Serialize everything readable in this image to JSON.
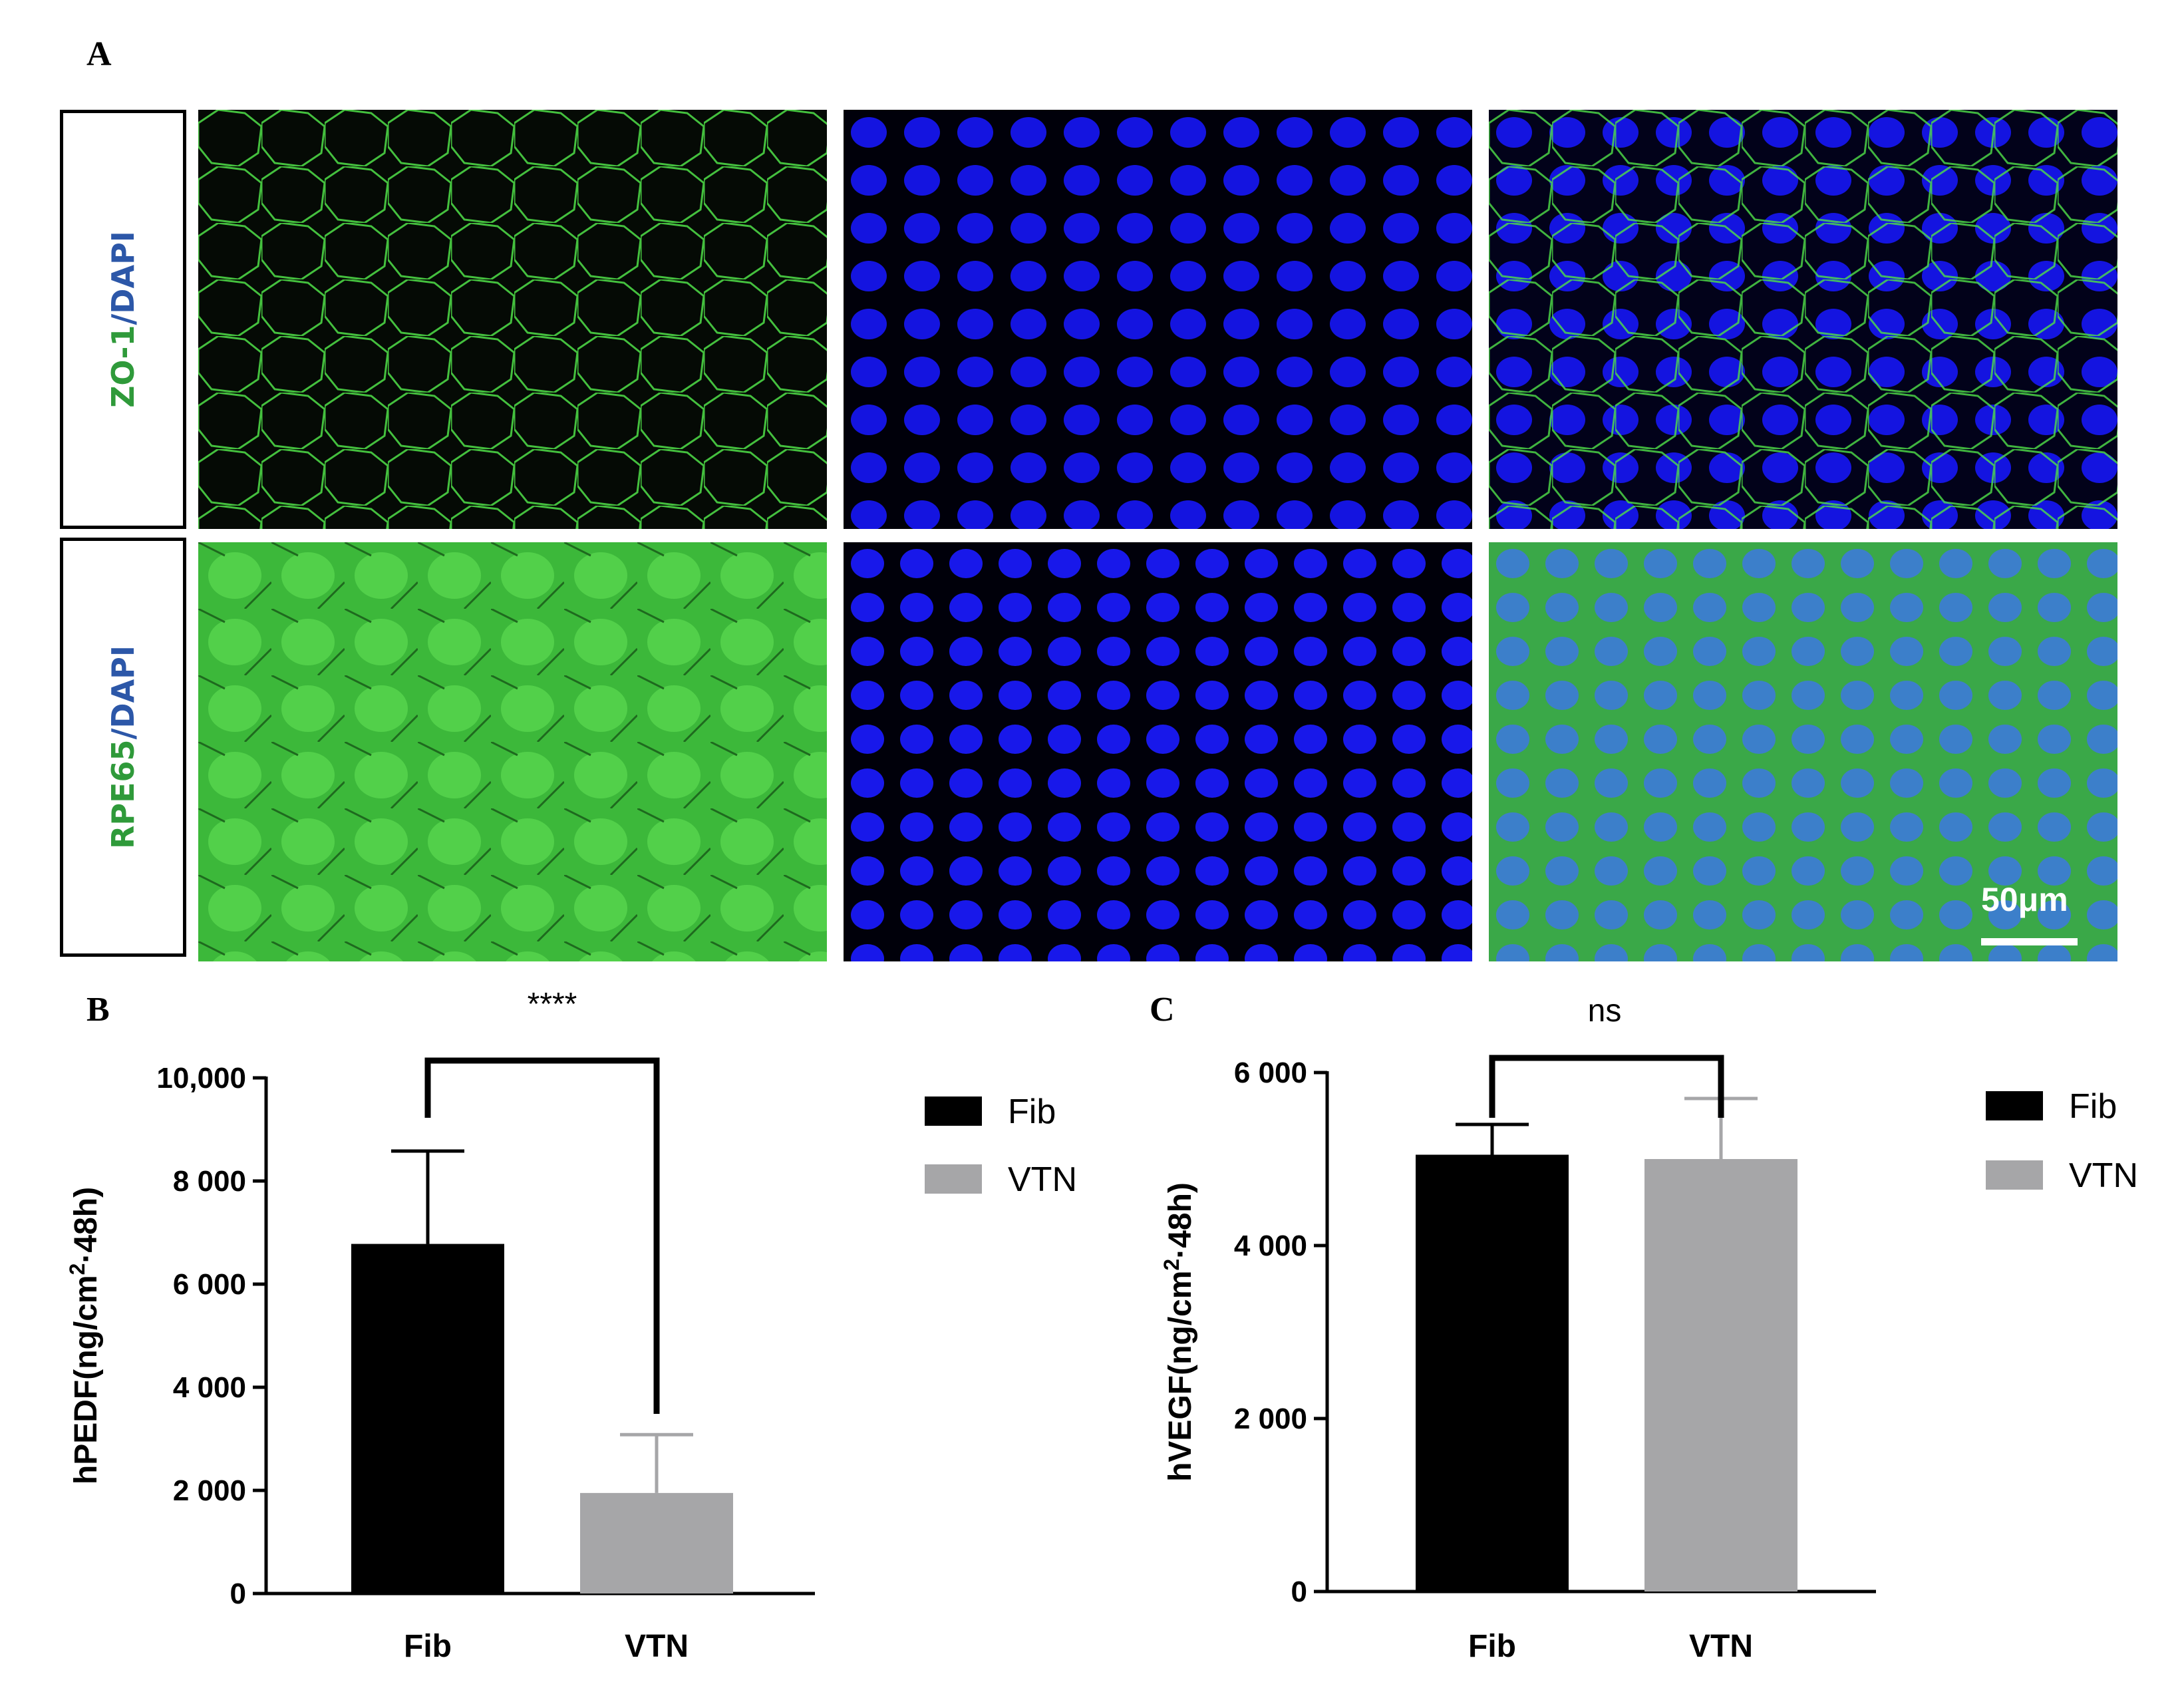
{
  "figure": {
    "panel_a": {
      "letter": "A",
      "rows": [
        {
          "stain": "ZO-1",
          "separator": "/",
          "counterstain": "DAPI"
        },
        {
          "stain": "RPE65",
          "separator": "/",
          "counterstain": "DAPI"
        }
      ],
      "scale_bar_label": "50μm"
    },
    "panel_b": {
      "letter": "B"
    },
    "panel_c": {
      "letter": "C"
    }
  },
  "colors": {
    "fib": "#000000",
    "vtn": "#a6a6a8",
    "stain_green": "#2f9a3a",
    "dapi_blue": "#2c57a8",
    "nucleus": "#1414e6"
  },
  "chart_data": [
    {
      "type": "bar",
      "panel": "B",
      "categories": [
        "Fib",
        "VTN"
      ],
      "values": [
        6780,
        1950
      ],
      "error_bars": [
        1800,
        1130
      ],
      "ylabel_main": "hPEDF(ng/cm",
      "ylabel_sup": "2",
      "ylabel_tail": "·48h)",
      "ylim": [
        0,
        10000
      ],
      "yticks": [
        0,
        2000,
        4000,
        6000,
        8000,
        10000
      ],
      "ytick_labels": [
        "0",
        "2 000",
        "4 000",
        "6 000",
        "8 000",
        "10,000"
      ],
      "significance": "****",
      "legend": [
        "Fib",
        "VTN"
      ],
      "legend_position": "right"
    },
    {
      "type": "bar",
      "panel": "C",
      "categories": [
        "Fib",
        "VTN"
      ],
      "values": [
        5050,
        5000
      ],
      "error_bars": [
        350,
        700
      ],
      "ylabel_main": "hVEGF(ng/cm",
      "ylabel_sup": "2",
      "ylabel_tail": "·48h)",
      "ylim": [
        0,
        6000
      ],
      "yticks": [
        0,
        2000,
        4000,
        6000
      ],
      "ytick_labels": [
        "0",
        "2 000",
        "4 000",
        "6 000"
      ],
      "significance": "ns",
      "legend": [
        "Fib",
        "VTN"
      ],
      "legend_position": "right"
    }
  ]
}
